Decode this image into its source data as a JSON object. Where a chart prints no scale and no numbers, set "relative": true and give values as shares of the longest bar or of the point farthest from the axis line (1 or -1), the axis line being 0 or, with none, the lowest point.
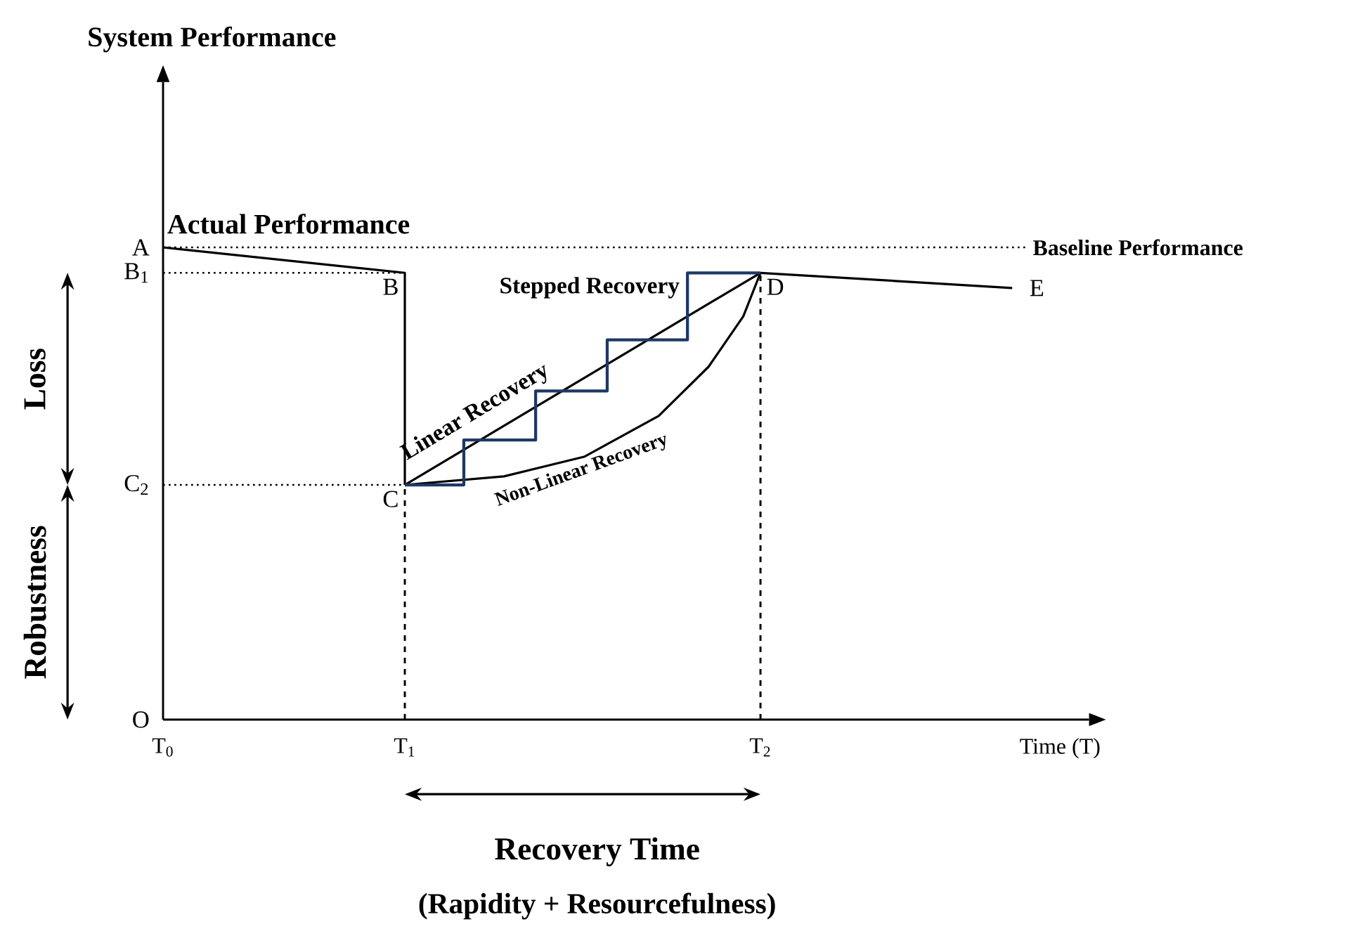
{
  "chart_data": {
    "type": "line",
    "relative": true,
    "xlabel": "Time (T)",
    "xlim": [
      0,
      3.83
    ],
    "xticks": [
      {
        "value": 0,
        "label": "T$_{0}$"
      },
      {
        "value": 1,
        "label": "T$_{1}$"
      },
      {
        "value": 2.471,
        "label": "T$_{2}$"
      }
    ],
    "series": [
      {
        "name": "Actual Performance",
        "color": "#000000",
        "x": [
          0,
          1,
          1
        ],
        "values": [
          1,
          0.946,
          0.497
        ]
      },
      {
        "name": "Linear Recovery",
        "color": "#000000",
        "x": [
          1,
          2.471
        ],
        "values": [
          0.497,
          0.946
        ]
      },
      {
        "name": "Non-Linear Recovery",
        "color": "#000000",
        "x": [
          1,
          1.41,
          1.744,
          2.05,
          2.256,
          2.4,
          2.471
        ],
        "values": [
          0.497,
          0.515,
          0.557,
          0.643,
          0.747,
          0.854,
          0.946
        ]
      },
      {
        "name": "Stepped Recovery",
        "type": "step",
        "color": "#1f3864",
        "x": [
          1,
          1.244,
          1.541,
          1.837,
          2.169,
          2.471
        ],
        "values": [
          0.497,
          0.592,
          0.696,
          0.804,
          0.946,
          0.946
        ]
      },
      {
        "color": "#000000",
        "x": [
          2.471,
          3.512
        ],
        "values": [
          0.946,
          0.914
        ]
      }
    ],
    "ref_lines": [
      {
        "axis": "y",
        "value": 1,
        "label": "Baseline Performance",
        "line_style": "dotted"
      },
      {
        "axis": "y",
        "value": 0.946,
        "line_style": "dotted"
      },
      {
        "axis": "y",
        "value": 0.497,
        "line_style": "dotted"
      },
      {
        "axis": "x",
        "value": 1,
        "line_style": "dashed"
      },
      {
        "axis": "x",
        "value": 2.471,
        "line_style": "dashed"
      }
    ],
    "annotations": [
      {
        "text": "A",
        "x": 0,
        "y": 1
      },
      {
        "text": "B$_{1}$",
        "x": 0,
        "y": 0.946
      },
      {
        "text": "C$_{2}$",
        "x": 0,
        "y": 0.497
      },
      "O",
      {
        "text": "B",
        "x": 1,
        "y": 0.946
      },
      {
        "text": "C",
        "x": 1,
        "y": 0.497
      },
      {
        "text": "D",
        "x": 2.471,
        "y": 0.946
      },
      {
        "text": "E",
        "x": 3.512,
        "y": 0.914
      },
      "Loss",
      "Robustness",
      "Recovery Time",
      "(Rapidity + Resourcefulness)",
      "System Performance"
    ],
    "grid": false,
    "marker": "none",
    "line_style": "solid"
  }
}
